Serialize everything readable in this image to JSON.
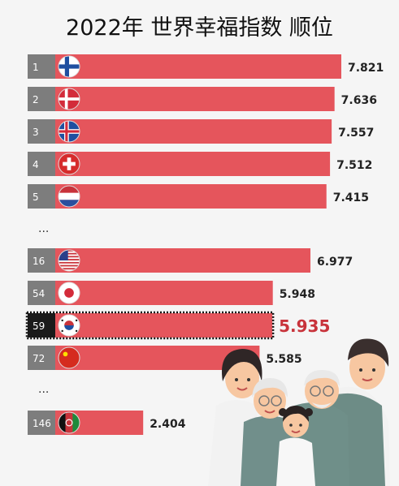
{
  "title": "2022年 世界幸福指数 顺位",
  "colors": {
    "bar": "#e5555c",
    "rank_box": "#7d7d7d",
    "highlight_box": "#1a1a1a",
    "highlight_value": "#c8333b",
    "value_text": "#222222"
  },
  "ellipsis": "...",
  "chart_data": {
    "type": "bar",
    "orientation": "horizontal",
    "title": "2022年 世界幸福指数 顺位",
    "rows": [
      {
        "rank": "1",
        "value": 7.821,
        "label": "7.821",
        "flag": "finland-flag"
      },
      {
        "rank": "2",
        "value": 7.636,
        "label": "7.636",
        "flag": "denmark-flag"
      },
      {
        "rank": "3",
        "value": 7.557,
        "label": "7.557",
        "flag": "iceland-flag"
      },
      {
        "rank": "4",
        "value": 7.512,
        "label": "7.512",
        "flag": "switzerland-flag"
      },
      {
        "rank": "5",
        "value": 7.415,
        "label": "7.415",
        "flag": "netherlands-flag"
      },
      {
        "rank": "16",
        "value": 6.977,
        "label": "6.977",
        "flag": "usa-flag"
      },
      {
        "rank": "54",
        "value": 5.948,
        "label": "5.948",
        "flag": "japan-flag"
      },
      {
        "rank": "59",
        "value": 5.935,
        "label": "5.935",
        "flag": "korea-flag",
        "highlight": true
      },
      {
        "rank": "72",
        "value": 5.585,
        "label": "5.585",
        "flag": "china-flag"
      },
      {
        "rank": "146",
        "value": 2.404,
        "label": "2.404",
        "flag": "afghanistan-flag"
      }
    ],
    "gaps_after_ranks": [
      "5",
      "72"
    ]
  }
}
